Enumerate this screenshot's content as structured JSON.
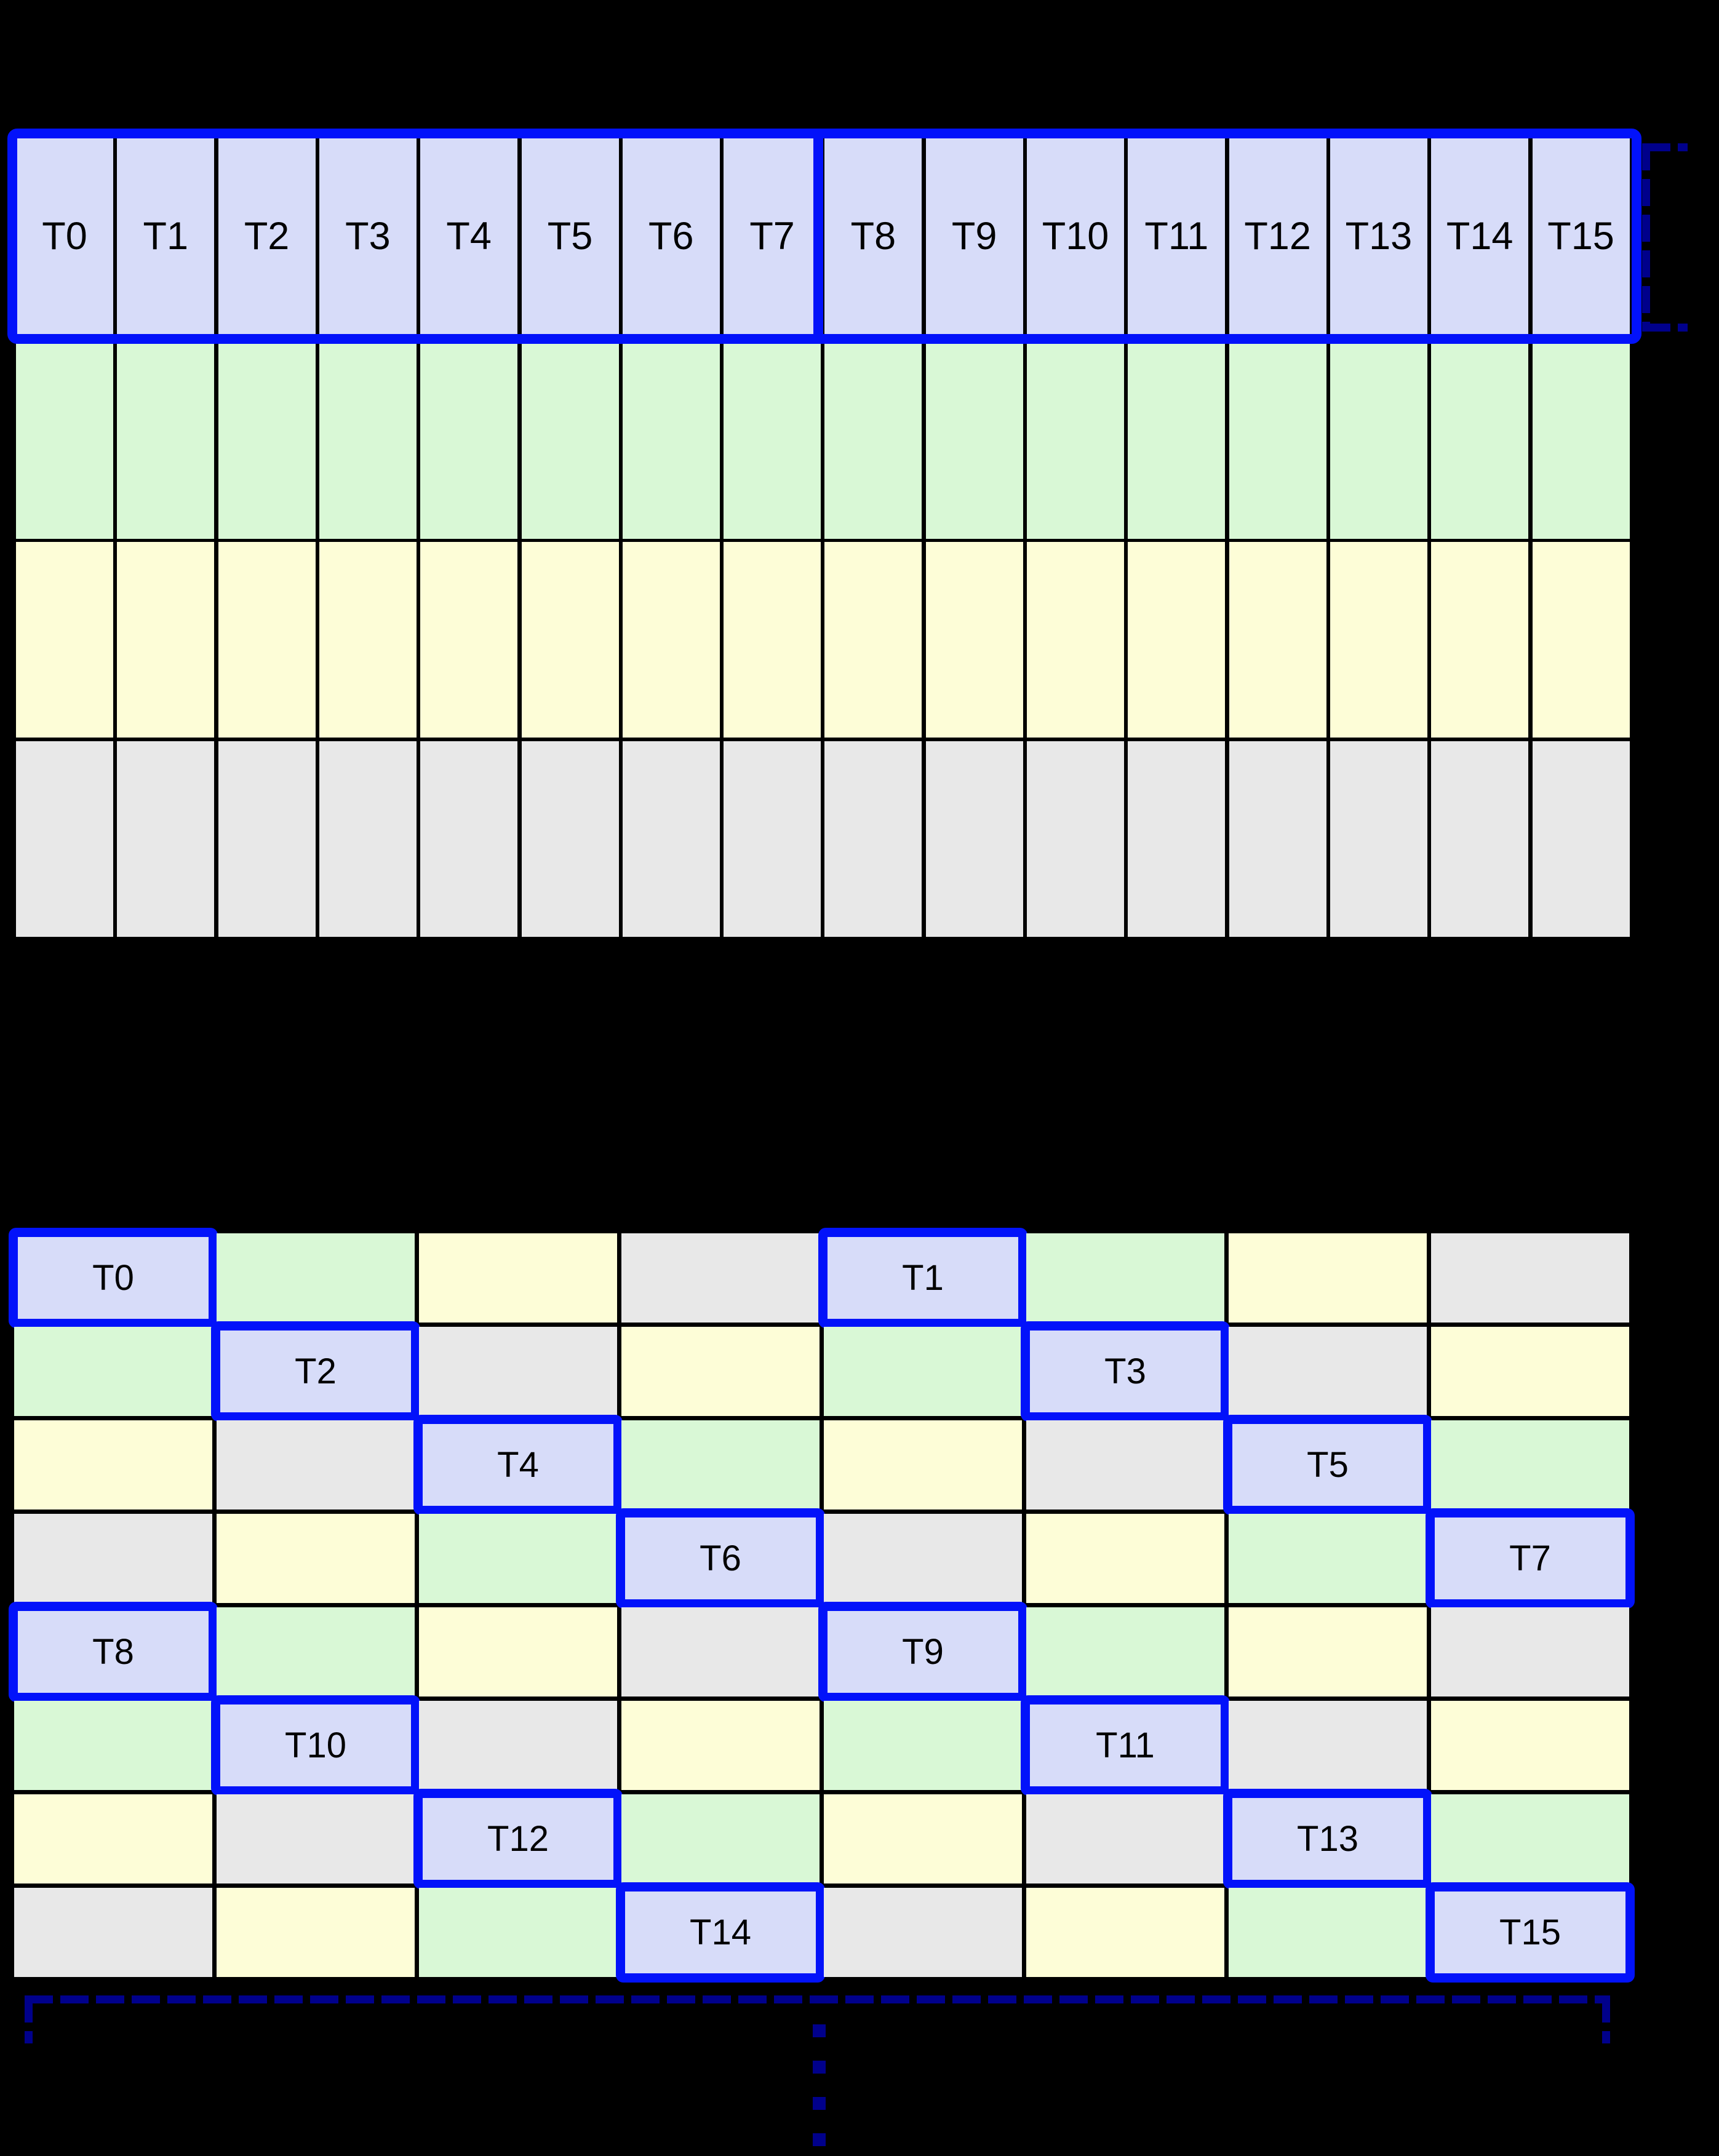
{
  "colors": {
    "background": "#000000",
    "lavender": "#d7dcf9",
    "green": "#d9f8d6",
    "yellow": "#fdfdd7",
    "gray": "#e8e8e8",
    "highlight_blue": "#0212fa",
    "bracket_navy": "#00008b",
    "cell_text": "#000000"
  },
  "top_grid": {
    "columns": 16,
    "rows": 4,
    "row_colors": [
      "lavender",
      "green",
      "yellow",
      "gray"
    ],
    "thread_labels": [
      "T0",
      "T1",
      "T2",
      "T3",
      "T4",
      "T5",
      "T6",
      "T7",
      "T8",
      "T9",
      "T10",
      "T11",
      "T12",
      "T13",
      "T14",
      "T15"
    ]
  },
  "bottom_grid": {
    "columns": 8,
    "rows": 8,
    "color_cycle": [
      "lavender",
      "green",
      "yellow",
      "gray"
    ],
    "pattern": "color_index = (row mod 4) xor (col mod 4)",
    "highlighted_cells": [
      {
        "label": "T0",
        "row": 0,
        "col": 0
      },
      {
        "label": "T1",
        "row": 0,
        "col": 4
      },
      {
        "label": "T2",
        "row": 1,
        "col": 1
      },
      {
        "label": "T3",
        "row": 1,
        "col": 5
      },
      {
        "label": "T4",
        "row": 2,
        "col": 2
      },
      {
        "label": "T5",
        "row": 2,
        "col": 6
      },
      {
        "label": "T6",
        "row": 3,
        "col": 3
      },
      {
        "label": "T7",
        "row": 3,
        "col": 7
      },
      {
        "label": "T8",
        "row": 4,
        "col": 0
      },
      {
        "label": "T9",
        "row": 4,
        "col": 4
      },
      {
        "label": "T10",
        "row": 5,
        "col": 1
      },
      {
        "label": "T11",
        "row": 5,
        "col": 5
      },
      {
        "label": "T12",
        "row": 6,
        "col": 2
      },
      {
        "label": "T13",
        "row": 6,
        "col": 6
      },
      {
        "label": "T14",
        "row": 7,
        "col": 3
      },
      {
        "label": "T15",
        "row": 7,
        "col": 7
      }
    ]
  }
}
